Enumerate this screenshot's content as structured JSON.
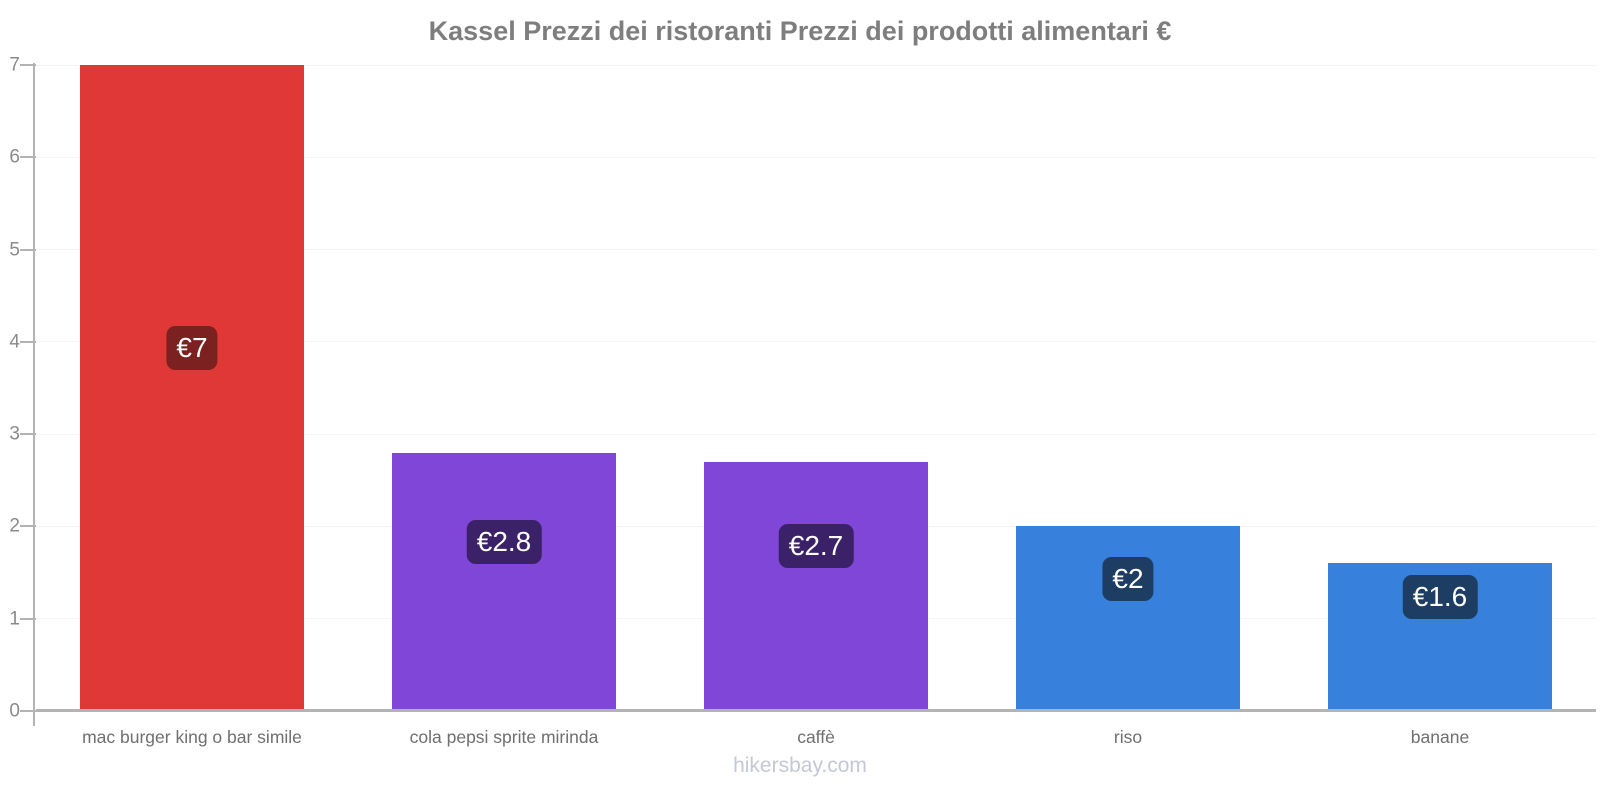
{
  "chart_data": {
    "type": "bar",
    "title": "Kassel Prezzi dei ristoranti Prezzi dei prodotti alimentari €",
    "categories": [
      "mac burger king o bar simile",
      "cola pepsi sprite mirinda",
      "caffè",
      "riso",
      "banane"
    ],
    "values": [
      7,
      2.8,
      2.7,
      2,
      1.6
    ],
    "value_labels": [
      "€7",
      "€2.8",
      "€2.7",
      "€2",
      "€1.6"
    ],
    "currency": "€",
    "xlabel": "",
    "ylabel": "",
    "ylim": [
      0,
      7
    ],
    "yticks": [
      0,
      1,
      2,
      3,
      4,
      5,
      6,
      7
    ],
    "grid": true,
    "legend": "none",
    "watermark": "hikersbay.com",
    "colors": {
      "bars": [
        "#e03836",
        "#7f46d8",
        "#7f46d8",
        "#3781dd",
        "#3781dd"
      ],
      "value_label_bg": [
        "#7b211f",
        "#3b2168",
        "#3b2168",
        "#1e3d63",
        "#1e3d63"
      ],
      "value_label_text": "#ffffff",
      "title_text": "#7e7e7e",
      "axis": "#b3b3b3",
      "tick_text": "#8a8a8a",
      "category_text": "#6f6f6f",
      "gridline": "#f4f4f4",
      "watermark_text": "#c4c7d6",
      "background": "#ffffff"
    }
  }
}
